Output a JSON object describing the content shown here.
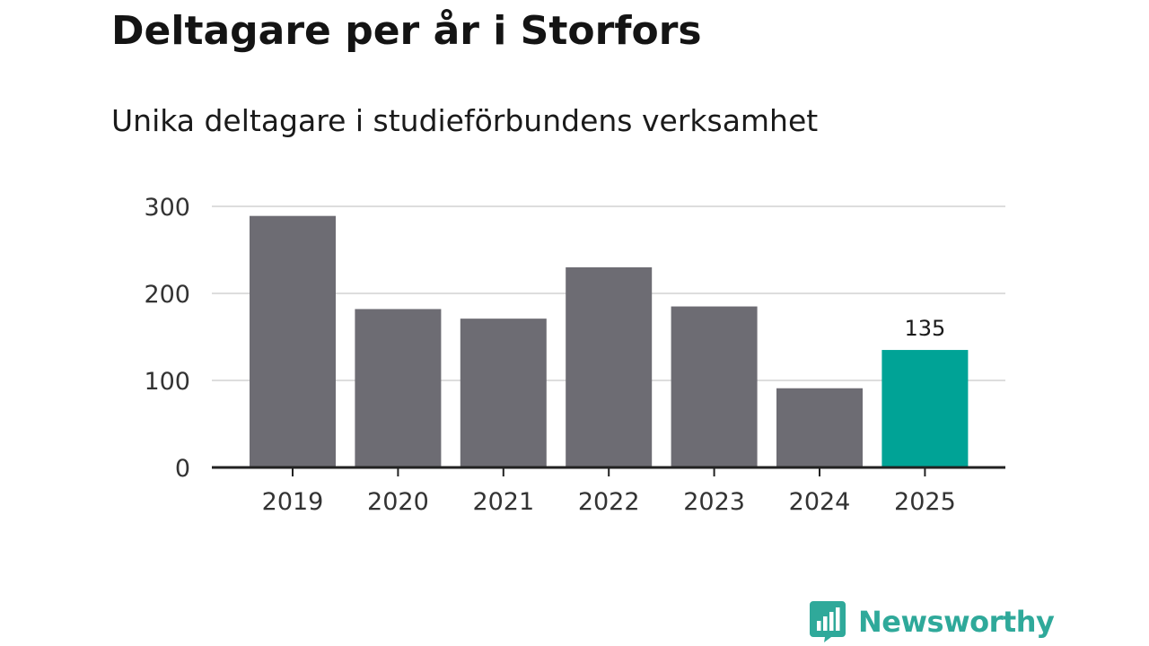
{
  "colors": {
    "bar": "#6d6c73",
    "highlight": "#00a396",
    "grid": "#dddddd",
    "axis": "#222222",
    "text": "#333333",
    "brand": "#2fa99a"
  },
  "brand": {
    "icon": "bar-chart-speech-bubble-icon",
    "name": "Newsworthy"
  },
  "chart_data": {
    "type": "bar",
    "title": "Deltagare per år i Storfors",
    "subtitle": "Unika deltagare i studieförbundens verksamhet",
    "categories": [
      "2019",
      "2020",
      "2021",
      "2022",
      "2023",
      "2024",
      "2025"
    ],
    "values": [
      289,
      182,
      171,
      230,
      185,
      91,
      135
    ],
    "highlight_category": "2025",
    "data_labels": [
      {
        "category": "2025",
        "text": "135"
      }
    ],
    "yticks": [
      0,
      100,
      200,
      300
    ],
    "ylim": [
      0,
      300
    ],
    "xlabel": "",
    "ylabel": "",
    "grid": "horizontal",
    "legend": "none"
  }
}
